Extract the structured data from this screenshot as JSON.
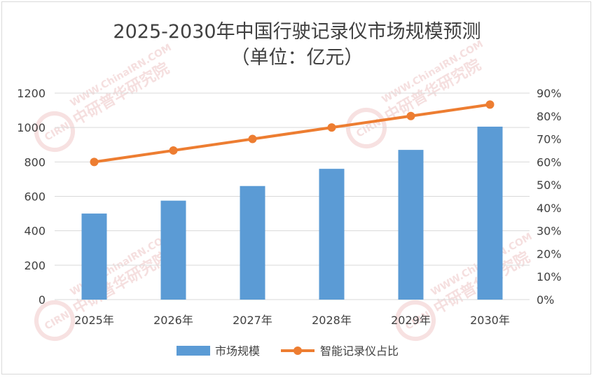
{
  "chart_data": {
    "type": "bar",
    "title": "2025-2030年中国行驶记录仪市场规模预测",
    "subtitle": "（单位：亿元）",
    "categories": [
      "2025年",
      "2026年",
      "2027年",
      "2028年",
      "2029年",
      "2030年"
    ],
    "series": [
      {
        "name": "市场规模",
        "type": "bar",
        "axis": "left",
        "color": "#5b9bd5",
        "values": [
          500,
          575,
          660,
          760,
          870,
          1005
        ]
      },
      {
        "name": "智能记录仪占比",
        "type": "line",
        "axis": "right",
        "color": "#ed7d31",
        "values": [
          0.6,
          0.65,
          0.7,
          0.75,
          0.8,
          0.85
        ]
      }
    ],
    "y_left": {
      "min": 0,
      "max": 1200,
      "ticks": [
        "0",
        "200",
        "400",
        "600",
        "800",
        "1000",
        "1200"
      ]
    },
    "y_right": {
      "min": 0,
      "max": 0.9,
      "ticks": [
        "0%",
        "10%",
        "20%",
        "30%",
        "40%",
        "50%",
        "60%",
        "70%",
        "80%",
        "90%"
      ]
    },
    "grid": true,
    "legend_position": "bottom",
    "watermark": {
      "brand_cn": "中研普华研究院",
      "brand_url": "WWW.ChinaIRN.COM",
      "logo": "CIRN"
    }
  }
}
